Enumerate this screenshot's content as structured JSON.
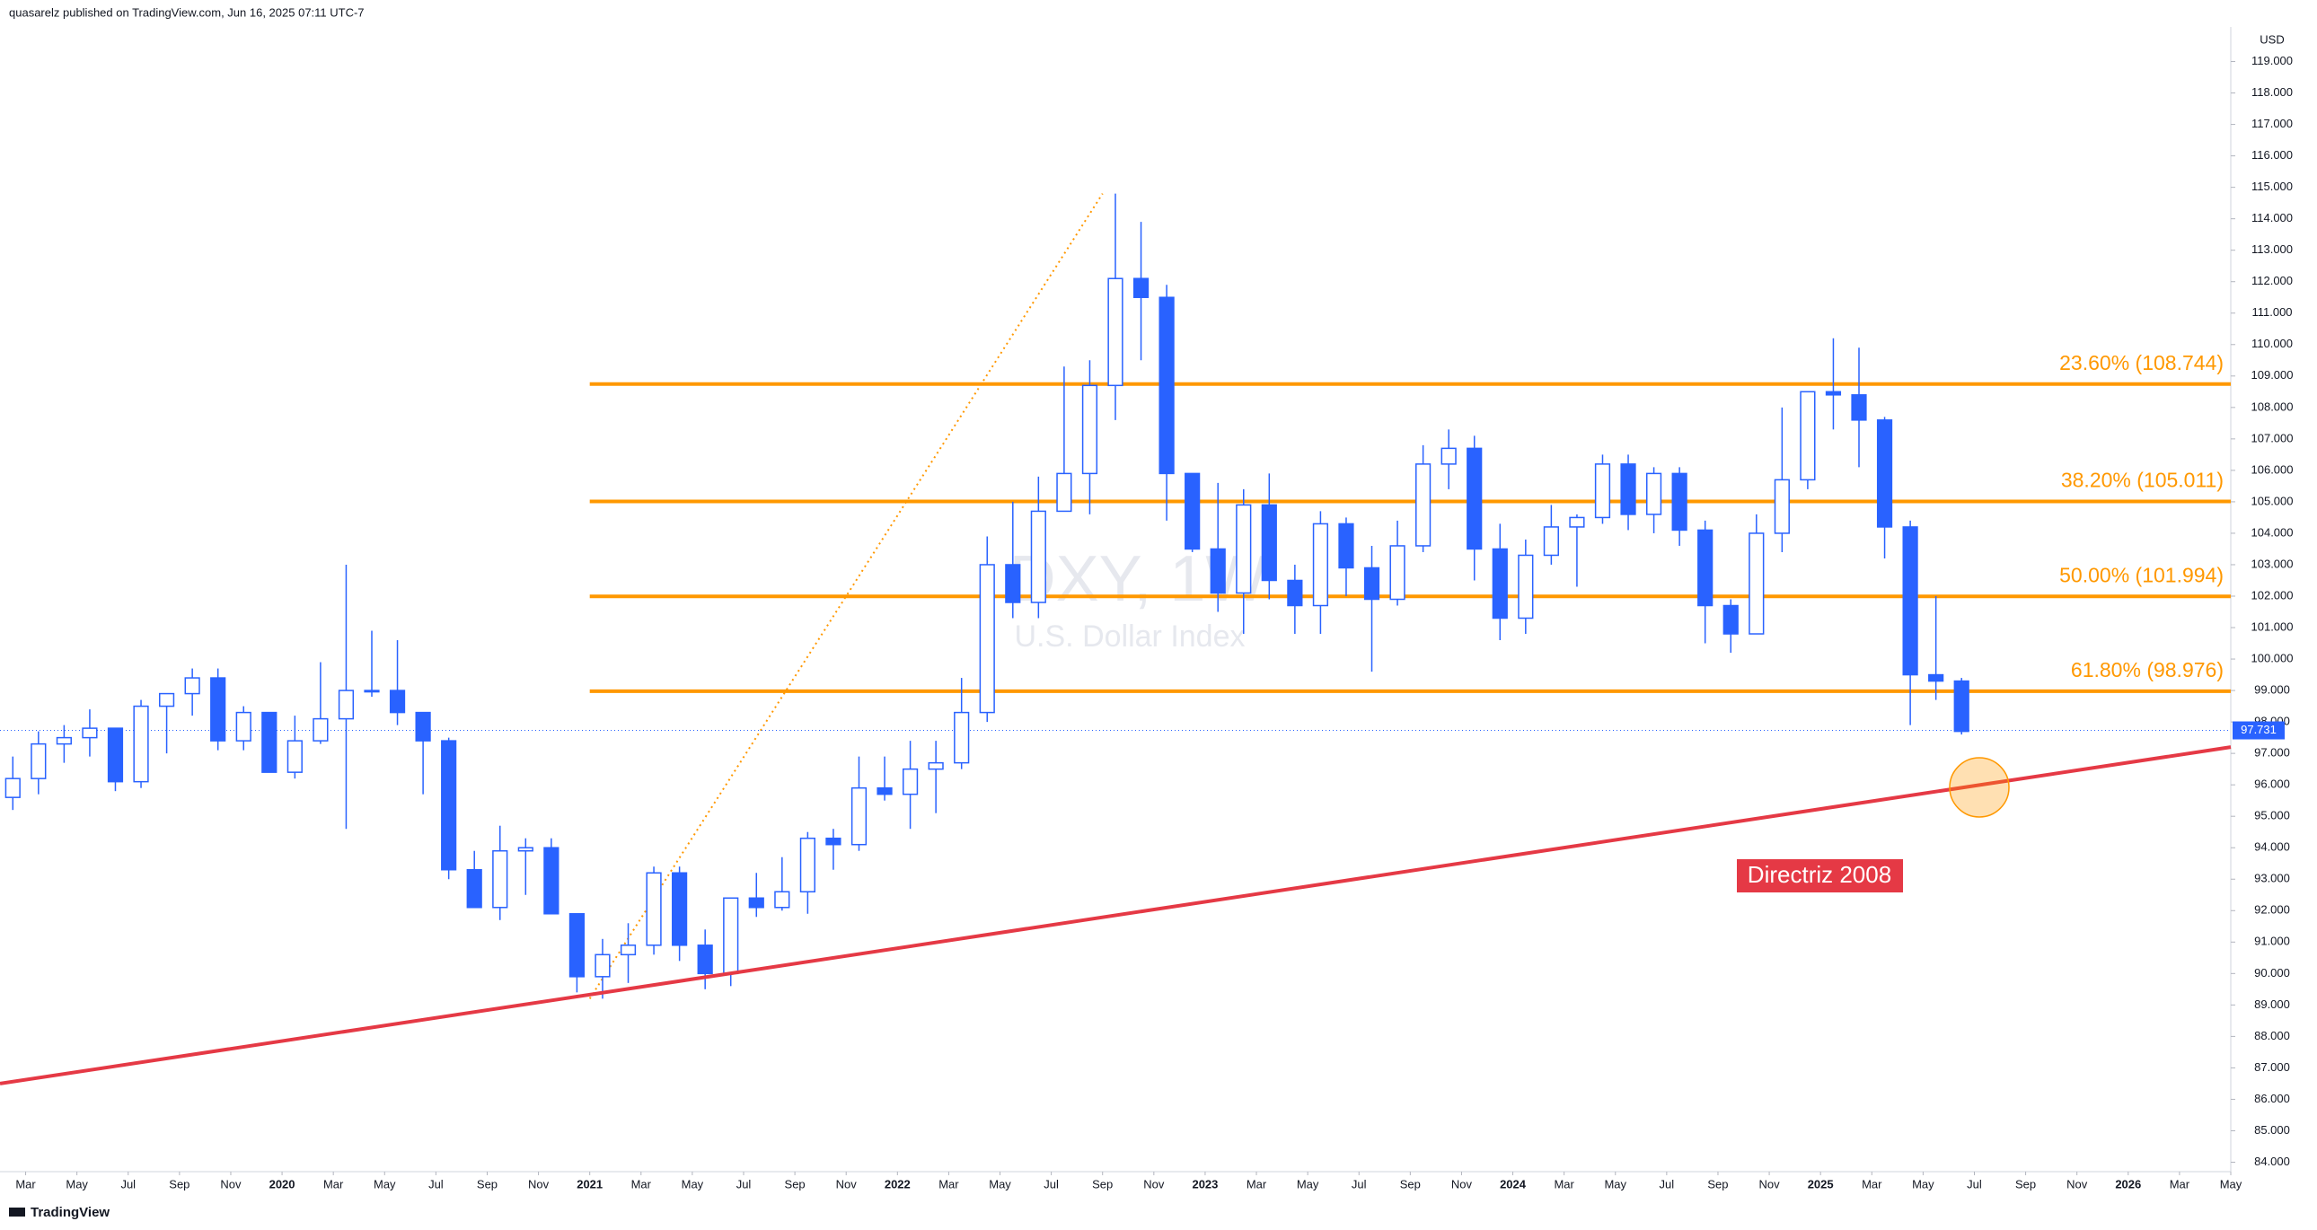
{
  "chart_data": {
    "type": "candlestick",
    "header": "quasarelz published on TradingView.com, Jun 16, 2025 07:11 UTC-7",
    "watermark_symbol": "DXY, 1W",
    "watermark_name": "U.S. Dollar Index",
    "currency": "USD",
    "footer": "TradingView",
    "up_color": "#ffffff",
    "down_color": "#2962ff",
    "x": [
      "2019-02",
      "2019-03",
      "2019-04",
      "2019-05",
      "2019-06",
      "2019-07",
      "2019-08",
      "2019-09",
      "2019-10",
      "2019-11",
      "2019-12",
      "2020-01",
      "2020-02",
      "2020-03",
      "2020-04",
      "2020-05",
      "2020-06",
      "2020-07",
      "2020-08",
      "2020-09",
      "2020-10",
      "2020-11",
      "2020-12",
      "2021-01",
      "2021-02",
      "2021-03",
      "2021-04",
      "2021-05",
      "2021-06",
      "2021-07",
      "2021-08",
      "2021-09",
      "2021-10",
      "2021-11",
      "2021-12",
      "2022-01",
      "2022-02",
      "2022-03",
      "2022-04",
      "2022-05",
      "2022-06",
      "2022-07",
      "2022-08",
      "2022-09",
      "2022-10",
      "2022-11",
      "2022-12",
      "2023-01",
      "2023-02",
      "2023-03",
      "2023-04",
      "2023-05",
      "2023-06",
      "2023-07",
      "2023-08",
      "2023-09",
      "2023-10",
      "2023-11",
      "2023-12",
      "2024-01",
      "2024-02",
      "2024-03",
      "2024-04",
      "2024-05",
      "2024-06",
      "2024-07",
      "2024-08",
      "2024-09",
      "2024-10",
      "2024-11",
      "2024-12",
      "2025-01",
      "2025-02",
      "2025-03",
      "2025-04",
      "2025-05",
      "2025-06"
    ],
    "open": [
      95.6,
      96.2,
      97.3,
      97.5,
      97.8,
      96.1,
      98.5,
      98.9,
      99.4,
      97.4,
      98.3,
      96.4,
      97.4,
      98.1,
      99.0,
      99.0,
      98.3,
      97.4,
      93.3,
      92.1,
      93.9,
      94.0,
      91.9,
      89.9,
      90.6,
      90.9,
      93.2,
      90.9,
      90.0,
      92.4,
      92.1,
      92.6,
      94.3,
      94.1,
      95.9,
      95.7,
      96.5,
      96.7,
      98.3,
      103.0,
      101.8,
      104.7,
      105.9,
      108.7,
      112.1,
      111.5,
      105.9,
      103.5,
      102.1,
      104.9,
      102.5,
      101.7,
      104.3,
      102.9,
      101.9,
      103.6,
      106.2,
      106.7,
      103.5,
      101.3,
      103.3,
      104.2,
      104.5,
      106.2,
      104.6,
      105.9,
      104.1,
      101.7,
      100.8,
      104.0,
      105.7,
      108.5,
      108.4,
      107.6,
      104.2,
      99.5,
      99.3
    ],
    "high": [
      96.9,
      97.7,
      97.9,
      98.4,
      97.8,
      98.7,
      98.9,
      99.7,
      99.7,
      98.5,
      98.3,
      98.2,
      99.9,
      103.0,
      100.9,
      100.6,
      98.3,
      97.5,
      93.9,
      94.7,
      94.3,
      94.3,
      91.9,
      91.1,
      91.6,
      93.4,
      93.4,
      91.4,
      92.4,
      93.2,
      93.7,
      94.5,
      94.6,
      96.9,
      96.9,
      97.4,
      97.4,
      99.4,
      103.9,
      105.0,
      105.8,
      109.3,
      109.5,
      114.8,
      113.9,
      111.9,
      105.9,
      105.6,
      105.4,
      105.9,
      103.0,
      104.7,
      104.5,
      103.6,
      104.4,
      106.8,
      107.3,
      107.1,
      104.3,
      103.8,
      104.9,
      104.6,
      106.5,
      106.5,
      106.1,
      106.1,
      104.4,
      101.9,
      104.6,
      108.0,
      108.5,
      110.2,
      109.9,
      107.7,
      104.4,
      102.0,
      99.4
    ],
    "low": [
      95.2,
      95.7,
      96.7,
      96.9,
      95.8,
      95.9,
      97.0,
      98.2,
      97.1,
      97.1,
      96.4,
      96.2,
      97.3,
      94.6,
      98.8,
      97.9,
      95.7,
      93.0,
      92.1,
      91.7,
      92.5,
      91.9,
      89.4,
      89.2,
      89.7,
      90.6,
      90.4,
      89.5,
      89.6,
      91.8,
      92.0,
      91.9,
      93.3,
      93.9,
      95.5,
      94.6,
      95.1,
      96.5,
      98.0,
      101.3,
      101.3,
      104.7,
      104.6,
      107.6,
      109.5,
      104.4,
      103.4,
      101.5,
      100.8,
      101.9,
      100.8,
      100.8,
      102.0,
      99.6,
      101.7,
      103.4,
      105.4,
      102.5,
      100.6,
      100.8,
      103.0,
      102.3,
      104.3,
      104.1,
      104.0,
      103.6,
      100.5,
      100.2,
      100.8,
      103.4,
      105.4,
      107.3,
      106.1,
      103.2,
      97.9,
      98.7,
      97.6
    ],
    "close": [
      96.2,
      97.3,
      97.5,
      97.8,
      96.1,
      98.5,
      98.9,
      99.4,
      97.4,
      98.3,
      96.4,
      97.4,
      98.1,
      99.0,
      99.0,
      98.3,
      97.4,
      93.3,
      92.1,
      93.9,
      94.0,
      91.9,
      89.9,
      90.6,
      90.9,
      93.2,
      90.9,
      90.0,
      92.4,
      92.1,
      92.6,
      94.3,
      94.1,
      95.9,
      95.7,
      96.5,
      96.7,
      98.3,
      103.0,
      101.8,
      104.7,
      105.9,
      108.7,
      112.1,
      111.5,
      105.9,
      103.5,
      102.1,
      104.9,
      102.5,
      101.7,
      104.3,
      102.9,
      101.9,
      103.6,
      106.2,
      106.7,
      103.5,
      101.3,
      103.3,
      104.2,
      104.5,
      106.2,
      104.6,
      105.9,
      104.1,
      101.7,
      100.8,
      104.0,
      105.7,
      108.5,
      108.4,
      107.6,
      104.2,
      99.5,
      99.3,
      97.7
    ],
    "xlim": [
      "2019-02",
      "2026-05"
    ],
    "xticks": [
      {
        "value": "2019-03",
        "label": "Mar"
      },
      {
        "value": "2019-05",
        "label": "May"
      },
      {
        "value": "2019-07",
        "label": "Jul"
      },
      {
        "value": "2019-09",
        "label": "Sep"
      },
      {
        "value": "2019-11",
        "label": "Nov"
      },
      {
        "value": "2020-01",
        "label": "2020"
      },
      {
        "value": "2020-03",
        "label": "Mar"
      },
      {
        "value": "2020-05",
        "label": "May"
      },
      {
        "value": "2020-07",
        "label": "Jul"
      },
      {
        "value": "2020-09",
        "label": "Sep"
      },
      {
        "value": "2020-11",
        "label": "Nov"
      },
      {
        "value": "2021-01",
        "label": "2021"
      },
      {
        "value": "2021-03",
        "label": "Mar"
      },
      {
        "value": "2021-05",
        "label": "May"
      },
      {
        "value": "2021-07",
        "label": "Jul"
      },
      {
        "value": "2021-09",
        "label": "Sep"
      },
      {
        "value": "2021-11",
        "label": "Nov"
      },
      {
        "value": "2022-01",
        "label": "2022"
      },
      {
        "value": "2022-03",
        "label": "Mar"
      },
      {
        "value": "2022-05",
        "label": "May"
      },
      {
        "value": "2022-07",
        "label": "Jul"
      },
      {
        "value": "2022-09",
        "label": "Sep"
      },
      {
        "value": "2022-11",
        "label": "Nov"
      },
      {
        "value": "2023-01",
        "label": "2023"
      },
      {
        "value": "2023-03",
        "label": "Mar"
      },
      {
        "value": "2023-05",
        "label": "May"
      },
      {
        "value": "2023-07",
        "label": "Jul"
      },
      {
        "value": "2023-09",
        "label": "Sep"
      },
      {
        "value": "2023-11",
        "label": "Nov"
      },
      {
        "value": "2024-01",
        "label": "2024"
      },
      {
        "value": "2024-03",
        "label": "Mar"
      },
      {
        "value": "2024-05",
        "label": "May"
      },
      {
        "value": "2024-07",
        "label": "Jul"
      },
      {
        "value": "2024-09",
        "label": "Sep"
      },
      {
        "value": "2024-11",
        "label": "Nov"
      },
      {
        "value": "2025-01",
        "label": "2025"
      },
      {
        "value": "2025-03",
        "label": "Mar"
      },
      {
        "value": "2025-05",
        "label": "May"
      },
      {
        "value": "2025-07",
        "label": "Jul"
      },
      {
        "value": "2025-09",
        "label": "Sep"
      },
      {
        "value": "2025-11",
        "label": "Nov"
      },
      {
        "value": "2026-01",
        "label": "2026"
      },
      {
        "value": "2026-03",
        "label": "Mar"
      },
      {
        "value": "2026-05",
        "label": "May"
      }
    ],
    "ylim": [
      83.7,
      120.1
    ],
    "yticks": [
      {
        "value": 84,
        "label": "84.000"
      },
      {
        "value": 85,
        "label": "85.000"
      },
      {
        "value": 86,
        "label": "86.000"
      },
      {
        "value": 87,
        "label": "87.000"
      },
      {
        "value": 88,
        "label": "88.000"
      },
      {
        "value": 89,
        "label": "89.000"
      },
      {
        "value": 90,
        "label": "90.000"
      },
      {
        "value": 91,
        "label": "91.000"
      },
      {
        "value": 92,
        "label": "92.000"
      },
      {
        "value": 93,
        "label": "93.000"
      },
      {
        "value": 94,
        "label": "94.000"
      },
      {
        "value": 95,
        "label": "95.000"
      },
      {
        "value": 96,
        "label": "96.000"
      },
      {
        "value": 97,
        "label": "97.000"
      },
      {
        "value": 98,
        "label": "98.000"
      },
      {
        "value": 99,
        "label": "99.000"
      },
      {
        "value": 100,
        "label": "100.000"
      },
      {
        "value": 101,
        "label": "101.000"
      },
      {
        "value": 102,
        "label": "102.000"
      },
      {
        "value": 103,
        "label": "103.000"
      },
      {
        "value": 104,
        "label": "104.000"
      },
      {
        "value": 105,
        "label": "105.000"
      },
      {
        "value": 106,
        "label": "106.000"
      },
      {
        "value": 107,
        "label": "107.000"
      },
      {
        "value": 108,
        "label": "108.000"
      },
      {
        "value": 109,
        "label": "109.000"
      },
      {
        "value": 110,
        "label": "110.000"
      },
      {
        "value": 111,
        "label": "111.000"
      },
      {
        "value": 112,
        "label": "112.000"
      },
      {
        "value": 113,
        "label": "113.000"
      },
      {
        "value": 114,
        "label": "114.000"
      },
      {
        "value": 115,
        "label": "115.000"
      },
      {
        "value": 116,
        "label": "116.000"
      },
      {
        "value": 117,
        "label": "117.000"
      },
      {
        "value": 118,
        "label": "118.000"
      },
      {
        "value": 119,
        "label": "119.000"
      }
    ],
    "last_price": 97.731,
    "last_price_color": "#2962ff",
    "fib_color": "#ff9800",
    "fib_start": "2021-01",
    "fib_levels": [
      {
        "value": 108.744,
        "label": "23.60% (108.744)"
      },
      {
        "value": 105.011,
        "label": "38.20% (105.011)"
      },
      {
        "value": 101.994,
        "label": "50.00% (101.994)"
      },
      {
        "value": 98.976,
        "label": "61.80% (98.976)"
      }
    ],
    "retracement_line": {
      "color": "#ff9800",
      "x": [
        "2021-01",
        "2022-09"
      ],
      "y": [
        89.2,
        114.8
      ]
    },
    "trendline": {
      "label": "Directriz 2008",
      "color": "#e53945",
      "x": [
        "2019-02",
        "2026-05"
      ],
      "y": [
        86.5,
        97.2
      ]
    }
  }
}
